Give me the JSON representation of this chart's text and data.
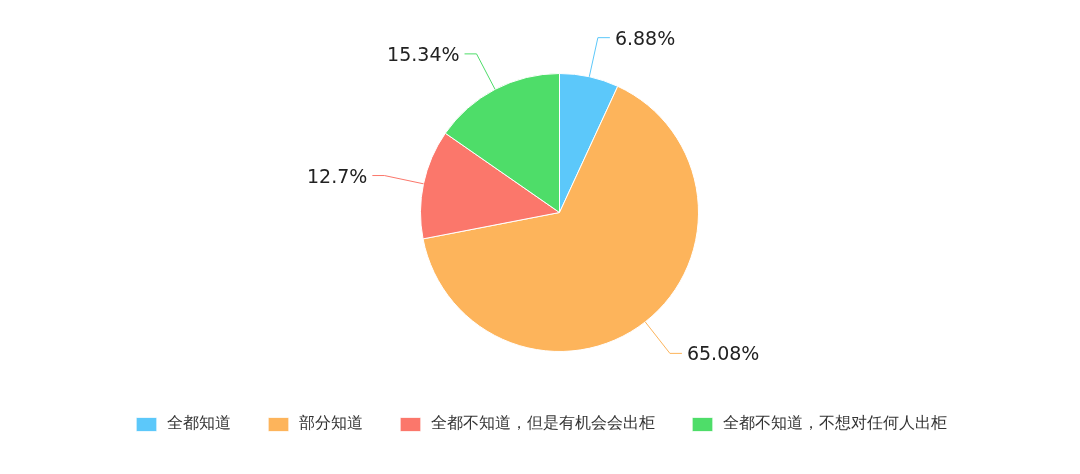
{
  "chart_data": {
    "type": "pie",
    "categories": [
      "全都知道",
      "部分知道",
      "全都不知道，但是有机会会出柜",
      "全都不知道，不想对任何人出柜"
    ],
    "values": [
      6.88,
      65.08,
      12.7,
      15.34
    ],
    "colors": [
      "#5cc8fa",
      "#fdb45b",
      "#fb776b",
      "#4edd69"
    ],
    "value_labels": [
      "6.88%",
      "65.08%",
      "12.7%",
      "15.34%"
    ],
    "legend": "bottom"
  }
}
